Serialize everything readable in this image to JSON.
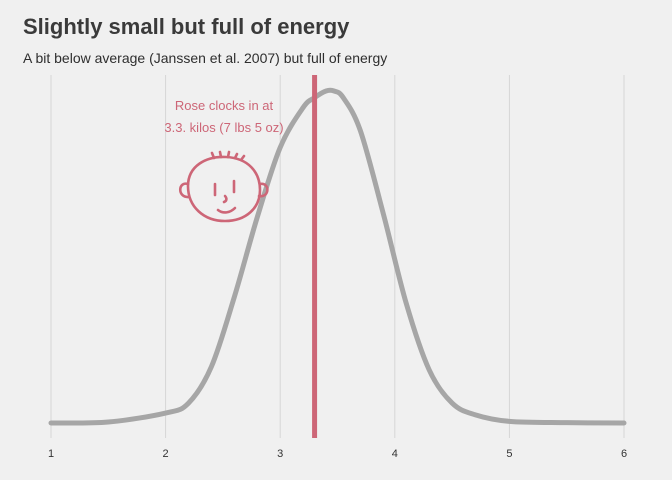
{
  "header": {
    "title": "Slightly small but full of energy",
    "subtitle": "A bit below average (Janssen et al. 2007) but full of energy"
  },
  "colors": {
    "background": "#f0f0f0",
    "grid": "#d6d6d6",
    "curve": "#a6a6a6",
    "marker": "#cd6677",
    "text": "#3a3a3a"
  },
  "chart_data": {
    "type": "line",
    "title": "Slightly small but full of energy",
    "subtitle": "A bit below average (Janssen et al. 2007) but full of energy",
    "xlabel": "",
    "ylabel": "",
    "xlim": [
      1,
      6
    ],
    "xticks": [
      1,
      2,
      3,
      4,
      5,
      6
    ],
    "ylim": [
      0,
      1
    ],
    "grid": "vertical",
    "series": [
      {
        "x": [
          1,
          1.5,
          2,
          2.2,
          2.4,
          2.6,
          2.8,
          3.0,
          3.2,
          3.3,
          3.4,
          3.47,
          3.55,
          3.7,
          3.9,
          4.1,
          4.3,
          4.5,
          4.7,
          5.0,
          5.5,
          6.0
        ],
        "values": [
          0.0,
          0.003,
          0.03,
          0.06,
          0.17,
          0.38,
          0.62,
          0.83,
          0.95,
          0.98,
          1.0,
          1.0,
          0.98,
          0.88,
          0.63,
          0.36,
          0.16,
          0.06,
          0.025,
          0.005,
          0.001,
          0.0
        ]
      }
    ],
    "marker": {
      "x": 3.3,
      "label_line1": "Rose clocks in at",
      "label_line2": "3.3. kilos (7 lbs 5 oz)"
    }
  },
  "icons": {
    "face": "baby-face-icon"
  }
}
